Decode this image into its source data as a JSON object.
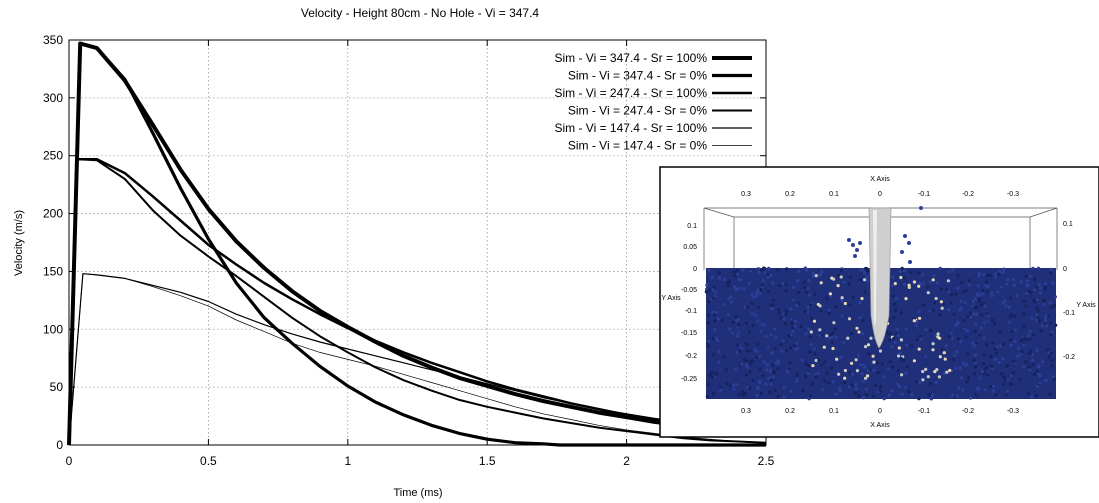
{
  "chart_data": {
    "type": "line",
    "title": "Velocity - Height 80cm - No Hole - Vi = 347.4",
    "xlabel": "Time (ms)",
    "ylabel": "Velocity (m/s)",
    "xlim": [
      0,
      2.5
    ],
    "ylim": [
      0,
      350
    ],
    "xticks": [
      "0",
      "0.5",
      "1",
      "1.5",
      "2",
      "2.5"
    ],
    "yticks": [
      "0",
      "50",
      "100",
      "150",
      "200",
      "250",
      "300",
      "350"
    ],
    "grid": true,
    "legend_position": "top-right",
    "series": [
      {
        "name": "Sim - Vi = 347.4 - Sr = 100%",
        "x": [
          0,
          0.04,
          0.1,
          0.2,
          0.3,
          0.4,
          0.5,
          0.6,
          0.7,
          0.8,
          0.9,
          1.0,
          1.1,
          1.2,
          1.3,
          1.4,
          1.5,
          1.6,
          1.7,
          1.8,
          1.9,
          2.0,
          2.1,
          2.2,
          2.3,
          2.4,
          2.5
        ],
        "y": [
          0,
          347,
          343,
          315,
          277,
          238,
          204,
          176,
          153,
          133,
          116,
          102,
          89,
          77,
          67,
          58,
          51,
          44,
          38,
          33,
          28,
          24,
          20,
          17,
          14,
          11,
          9
        ]
      },
      {
        "name": "Sim - Vi = 347.4 - Sr = 0%",
        "x": [
          0,
          0.04,
          0.1,
          0.2,
          0.3,
          0.4,
          0.5,
          0.6,
          0.7,
          0.8,
          0.9,
          1.0,
          1.1,
          1.2,
          1.3,
          1.4,
          1.5,
          1.6,
          1.7,
          1.76,
          1.9,
          2.0,
          2.2,
          2.5
        ],
        "y": [
          0,
          347,
          343,
          316,
          270,
          222,
          178,
          140,
          110,
          88,
          68,
          51,
          37,
          26,
          17,
          10,
          5,
          2,
          1,
          0,
          0,
          0,
          0,
          0
        ]
      },
      {
        "name": "Sim - Vi = 247.4 - Sr = 100%",
        "x": [
          0,
          0.03,
          0.1,
          0.2,
          0.3,
          0.4,
          0.5,
          0.6,
          0.7,
          0.8,
          0.9,
          1.0,
          1.1,
          1.2,
          1.3,
          1.4,
          1.5,
          1.6,
          1.7,
          1.8,
          1.9,
          2.0,
          2.1,
          2.2,
          2.3,
          2.4,
          2.5
        ],
        "y": [
          0,
          247,
          247,
          235,
          215,
          194,
          173,
          156,
          140,
          126,
          113,
          101,
          90,
          80,
          71,
          63,
          55,
          48,
          42,
          36,
          31,
          26,
          22,
          18,
          15,
          12,
          10
        ]
      },
      {
        "name": "Sim - Vi = 247.4 - Sr = 0%",
        "x": [
          0,
          0.03,
          0.1,
          0.2,
          0.3,
          0.4,
          0.5,
          0.6,
          0.7,
          0.8,
          0.9,
          1.0,
          1.1,
          1.2,
          1.3,
          1.4,
          1.5,
          1.6,
          1.7,
          1.8,
          1.9,
          2.0,
          2.1,
          2.2,
          2.3,
          2.4,
          2.5
        ],
        "y": [
          0,
          247,
          246,
          230,
          203,
          181,
          163,
          146,
          128,
          110,
          94,
          80,
          67,
          56,
          47,
          39,
          33,
          28,
          23,
          19,
          15,
          12,
          9,
          6,
          4,
          3,
          2
        ]
      },
      {
        "name": "Sim - Vi = 147.4 - Sr = 100%",
        "x": [
          0,
          0.05,
          0.1,
          0.2,
          0.3,
          0.4,
          0.5,
          0.6,
          0.7,
          0.8,
          0.9,
          1.0,
          1.1,
          1.2,
          1.3,
          1.4,
          1.5,
          1.6,
          1.7,
          1.8,
          1.9,
          2.0,
          2.1,
          2.2,
          2.3,
          2.4,
          2.5
        ],
        "y": [
          0,
          148,
          147,
          144,
          138,
          132,
          124,
          113,
          104,
          96,
          89,
          83,
          77,
          71,
          65,
          59,
          53,
          47,
          41,
          36,
          31,
          27,
          23,
          20,
          17,
          14,
          12
        ]
      },
      {
        "name": "Sim - Vi = 147.4 - Sr = 0%",
        "x": [
          0,
          0.05,
          0.1,
          0.2,
          0.3,
          0.4,
          0.5,
          0.6,
          0.7,
          0.8,
          0.9,
          1.0,
          1.1,
          1.2,
          1.3,
          1.4,
          1.5,
          1.6,
          1.7,
          1.8,
          1.9,
          2.0,
          2.1,
          2.2,
          2.3,
          2.4,
          2.5
        ],
        "y": [
          0,
          148,
          147,
          144,
          137,
          129,
          120,
          108,
          98,
          88,
          80,
          74,
          68,
          61,
          54,
          47,
          40,
          33,
          27,
          22,
          17,
          13,
          10,
          7,
          5,
          3,
          2
        ]
      }
    ]
  },
  "inset": {
    "top_axis_label": "X Axis",
    "bottom_axis_label": "X Axis",
    "left_axis_label": "Y Axis",
    "right_axis_label": "Y Axis",
    "x_ticks": [
      "0.3",
      "0.2",
      "0.1",
      "0",
      "-0.1",
      "-0.2",
      "-0.3"
    ],
    "left_y_ticks": [
      "0.1",
      "0.05",
      "0",
      "-0.05",
      "-0.1",
      "-0.15",
      "-0.2",
      "-0.25"
    ],
    "right_y_ticks": [
      "0.1",
      "0",
      "-0.1",
      "-0.2"
    ],
    "particle_color": "#1f2f7a",
    "projectile_color": "#cfcfcf"
  }
}
